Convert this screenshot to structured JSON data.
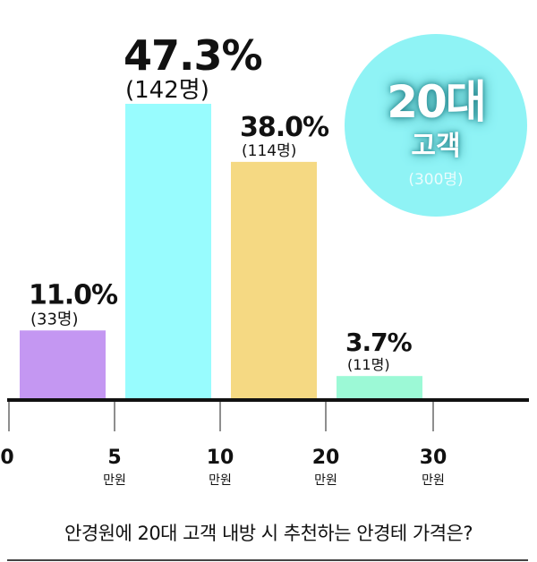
{
  "chart_data": {
    "type": "bar",
    "title": "안경원에 20대 고객 내방 시 추천하는 안경테 가격은?",
    "x_ticks": [
      {
        "value": "0",
        "unit": ""
      },
      {
        "value": "5",
        "unit": "만원"
      },
      {
        "value": "10",
        "unit": "만원"
      },
      {
        "value": "20",
        "unit": "만원"
      },
      {
        "value": "30",
        "unit": "만원"
      }
    ],
    "categories": [
      "0-5만원",
      "5-10만원",
      "10-20만원",
      "20-30만원"
    ],
    "values": [
      11.0,
      47.3,
      38.0,
      3.7
    ],
    "percent_labels": [
      "11.0%",
      "47.3%",
      "38.0%",
      "3.7%"
    ],
    "count_labels": [
      "(33명)",
      "(142명)",
      "(114명)",
      "(11명)"
    ],
    "colors": [
      "#c497f2",
      "#98fcfe",
      "#f5d983",
      "#9cf9d6"
    ],
    "ylim": [
      0,
      50
    ],
    "grid": false,
    "legend": "none"
  },
  "badge": {
    "line1": "20대",
    "line2": "고객",
    "line3": "(300명)",
    "color": "#8ff3f5"
  }
}
